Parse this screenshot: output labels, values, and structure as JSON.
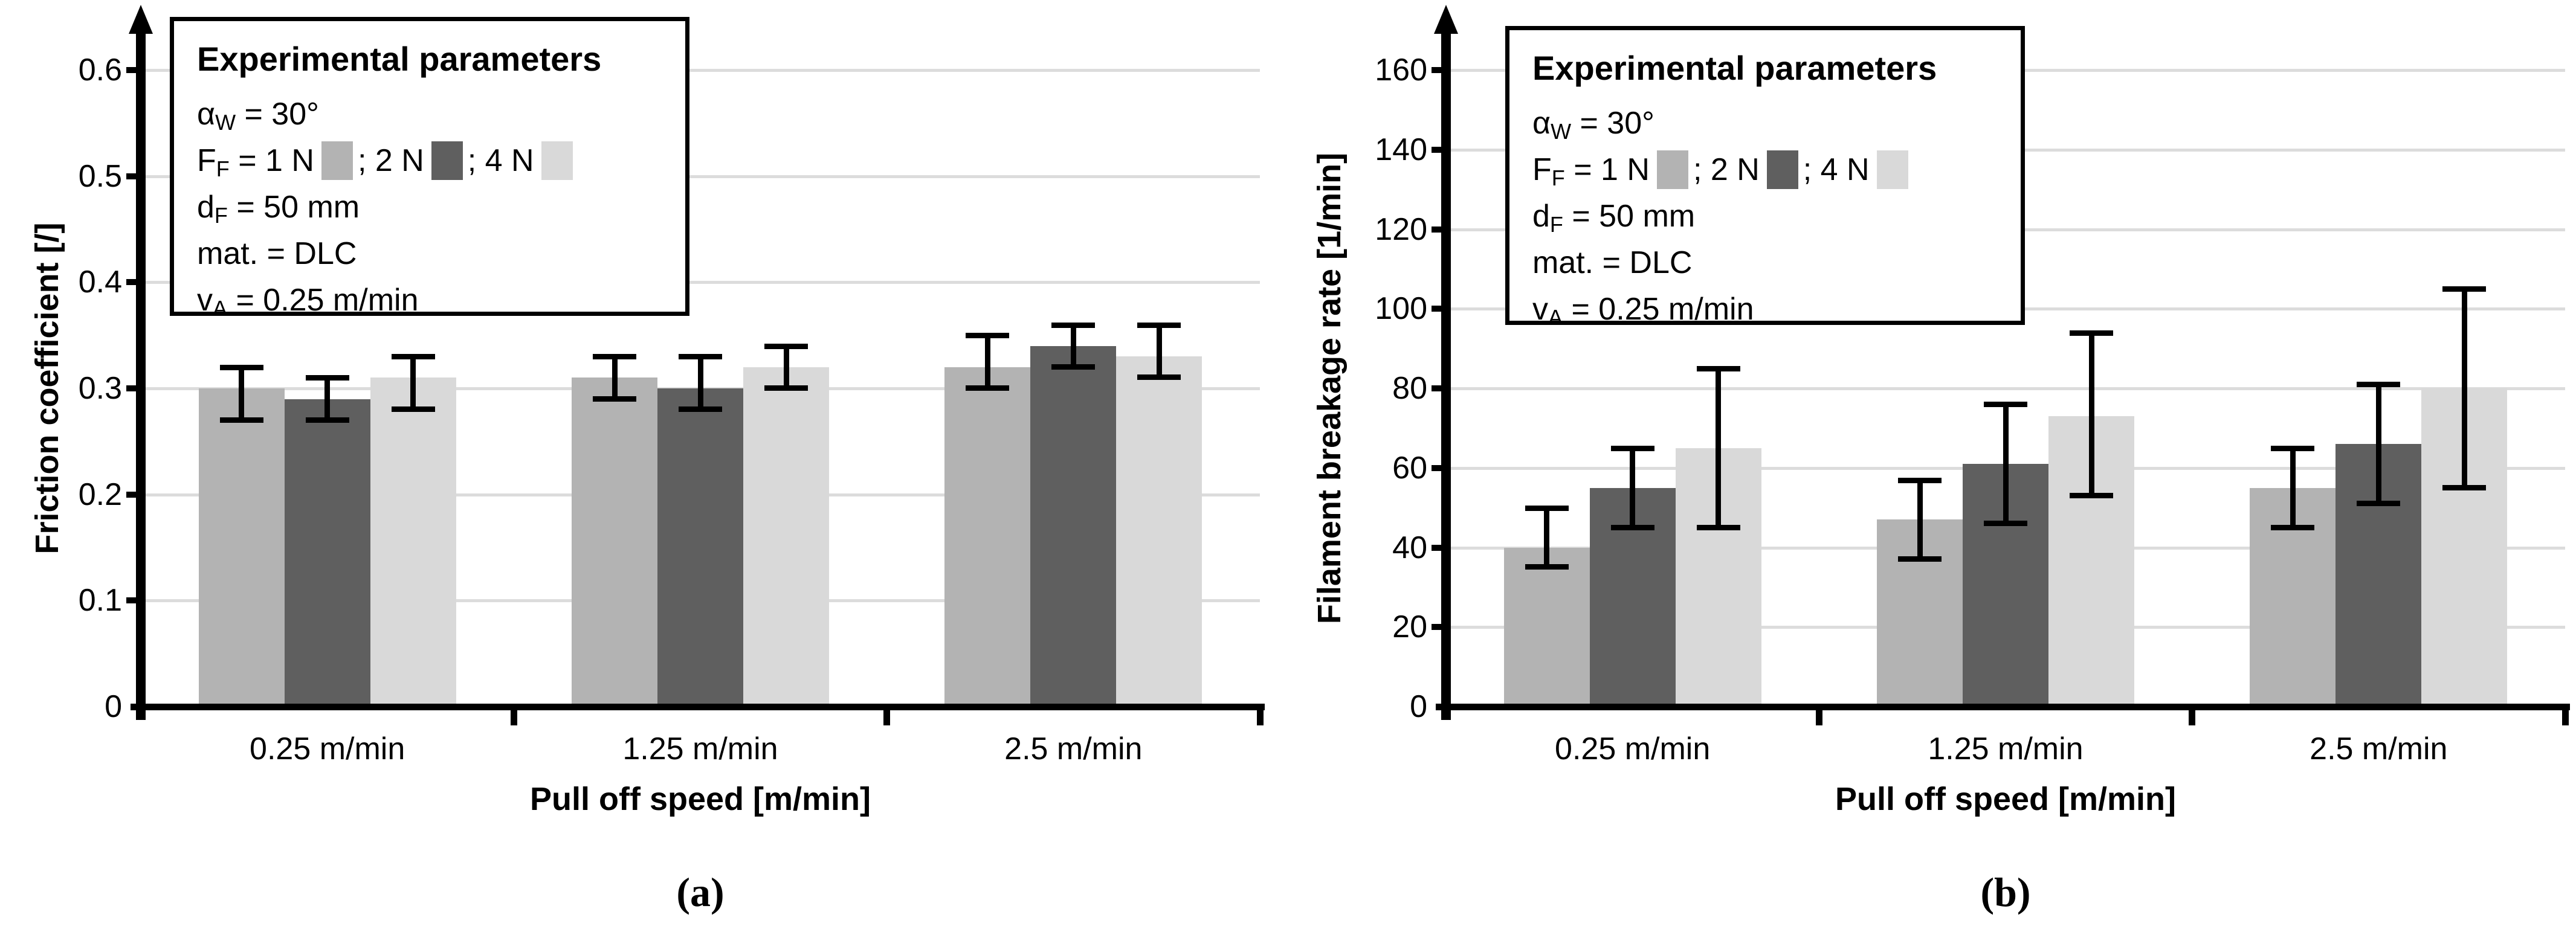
{
  "figure": {
    "background": "#ffffff",
    "text_color": "#000000",
    "gridline_color": "#dcdcdc"
  },
  "legend": {
    "title": "Experimental parameters",
    "rows": [
      {
        "segments": [
          {
            "text": "α"
          },
          {
            "sub": "W"
          },
          {
            "text": " = 30°"
          }
        ]
      },
      {
        "segments": [
          {
            "text": "F"
          },
          {
            "sub": "F"
          },
          {
            "text": " = 1 N"
          },
          {
            "swatch": 0
          },
          {
            "text": "; 2 N"
          },
          {
            "swatch": 1
          },
          {
            "text": "; 4 N"
          },
          {
            "swatch": 2
          }
        ]
      },
      {
        "segments": [
          {
            "text": "d"
          },
          {
            "sub": "F"
          },
          {
            "text": " = 50 mm"
          }
        ]
      },
      {
        "segments": [
          {
            "text": "mat. = DLC"
          }
        ]
      },
      {
        "segments": [
          {
            "text": "v"
          },
          {
            "sub": "A"
          },
          {
            "text": " = 0.25 m/min"
          }
        ]
      }
    ]
  },
  "series_colors": [
    "#b3b3b3",
    "#5f5f5f",
    "#d9d9d9"
  ],
  "chart_data": [
    {
      "type": "bar",
      "panel_label": "(a)",
      "title": "",
      "xlabel": "Pull off speed [m/min]",
      "ylabel": "Friction coefficient [/]",
      "categories": [
        "0.25 m/min",
        "1.25 m/min",
        "2.5 m/min"
      ],
      "ylim": [
        0,
        0.65
      ],
      "yticks": [
        0,
        0.1,
        0.2,
        0.3,
        0.4,
        0.5,
        0.6
      ],
      "ytick_labels": [
        "0",
        "0.1",
        "0.2",
        "0.3",
        "0.4",
        "0.5",
        "0.6"
      ],
      "grid": true,
      "legend_position": "top-left-box",
      "series": [
        {
          "name": "1 N",
          "color": "#b3b3b3",
          "values": [
            0.3,
            0.31,
            0.32
          ],
          "err_lo": [
            0.27,
            0.29,
            0.3
          ],
          "err_hi": [
            0.32,
            0.33,
            0.35
          ]
        },
        {
          "name": "2 N",
          "color": "#5f5f5f",
          "values": [
            0.29,
            0.3,
            0.34
          ],
          "err_lo": [
            0.27,
            0.28,
            0.32
          ],
          "err_hi": [
            0.31,
            0.33,
            0.36
          ]
        },
        {
          "name": "4 N",
          "color": "#d9d9d9",
          "values": [
            0.31,
            0.32,
            0.33
          ],
          "err_lo": [
            0.28,
            0.3,
            0.31
          ],
          "err_hi": [
            0.33,
            0.34,
            0.36
          ]
        }
      ]
    },
    {
      "type": "bar",
      "panel_label": "(b)",
      "title": "",
      "xlabel": "Pull off speed [m/min]",
      "ylabel": "Filament breakage rate [1/min]",
      "categories": [
        "0.25 m/min",
        "1.25 m/min",
        "2.5 m/min"
      ],
      "ylim": [
        0,
        170
      ],
      "yticks": [
        0,
        20,
        40,
        60,
        80,
        100,
        120,
        140,
        160
      ],
      "ytick_labels": [
        "0",
        "20",
        "40",
        "60",
        "80",
        "100",
        "120",
        "140",
        "160"
      ],
      "grid": true,
      "legend_position": "top-left-box",
      "series": [
        {
          "name": "1 N",
          "color": "#b3b3b3",
          "values": [
            40,
            47,
            55
          ],
          "err_lo": [
            35,
            37,
            45
          ],
          "err_hi": [
            50,
            57,
            65
          ]
        },
        {
          "name": "2 N",
          "color": "#5f5f5f",
          "values": [
            55,
            61,
            66
          ],
          "err_lo": [
            45,
            46,
            51
          ],
          "err_hi": [
            65,
            76,
            81
          ]
        },
        {
          "name": "4 N",
          "color": "#d9d9d9",
          "values": [
            65,
            73,
            80
          ],
          "err_lo": [
            45,
            53,
            55
          ],
          "err_hi": [
            85,
            94,
            105
          ]
        }
      ]
    }
  ]
}
